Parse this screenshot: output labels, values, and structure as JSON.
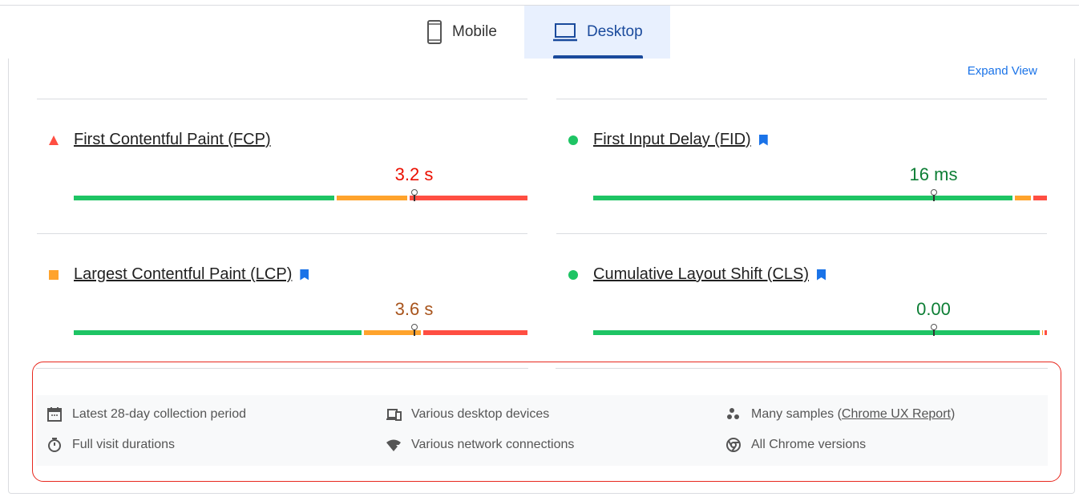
{
  "tabs": [
    {
      "label": "Mobile",
      "icon": "smartphone-icon",
      "active": false
    },
    {
      "label": "Desktop",
      "icon": "laptop-icon",
      "active": true
    }
  ],
  "expand_view": "Expand View",
  "colors": {
    "good": "#1ec464",
    "needs_improvement": "#ffa32c",
    "poor": "#ff4e42",
    "accent": "#1a73e8",
    "tab_active": "#1a4a9c"
  },
  "metrics": [
    {
      "name": "First Contentful Paint (FCP)",
      "indicator": "triangle-poor",
      "value": "3.2 s",
      "value_color": "#eb0f00",
      "bookmark": false,
      "distribution_pct": {
        "good": 58,
        "needs_improvement": 16,
        "poor": 25
      },
      "marker_pct": 75
    },
    {
      "name": "First Input Delay (FID)",
      "indicator": "circle-good",
      "value": "16 ms",
      "value_color": "#0d7e35",
      "bookmark": true,
      "distribution_pct": {
        "good": 93,
        "needs_improvement": 4,
        "poor": 3
      },
      "marker_pct": 75
    },
    {
      "name": "Largest Contentful Paint (LCP)",
      "indicator": "square-average",
      "value": "3.6 s",
      "value_color": "#a8541c",
      "bookmark": true,
      "distribution_pct": {
        "good": 64,
        "needs_improvement": 13,
        "poor": 22
      },
      "marker_pct": 75
    },
    {
      "name": "Cumulative Layout Shift (CLS)",
      "indicator": "circle-good",
      "value": "0.00",
      "value_color": "#0d7e35",
      "bookmark": true,
      "distribution_pct": {
        "good": 99,
        "needs_improvement": 0.5,
        "poor": 0.5
      },
      "marker_pct": 75
    }
  ],
  "info": {
    "collection_period": "Latest 28-day collection period",
    "devices": "Various desktop devices",
    "samples_prefix": "Many samples (",
    "samples_link": "Chrome UX Report",
    "samples_suffix": ")",
    "durations": "Full visit durations",
    "network": "Various network connections",
    "chrome": "All Chrome versions"
  }
}
